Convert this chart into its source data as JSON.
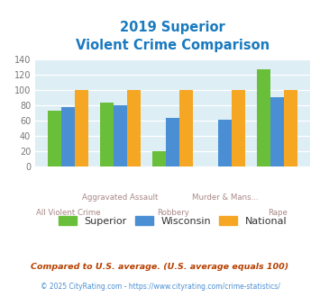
{
  "title_line1": "2019 Superior",
  "title_line2": "Violent Crime Comparison",
  "title_color": "#1a7abf",
  "categories": [
    "All Violent Crime",
    "Aggravated Assault",
    "Robbery",
    "Murder & Mans...",
    "Rape"
  ],
  "superior": [
    73,
    83,
    20,
    0,
    127
  ],
  "wisconsin": [
    77,
    80,
    63,
    61,
    91
  ],
  "national": [
    100,
    100,
    100,
    100,
    100
  ],
  "color_superior": "#6abf3a",
  "color_wisconsin": "#4a8fd4",
  "color_national": "#f5a623",
  "ylim": [
    0,
    140
  ],
  "yticks": [
    0,
    20,
    40,
    60,
    80,
    100,
    120,
    140
  ],
  "legend_labels": [
    "Superior",
    "Wisconsin",
    "National"
  ],
  "footnote1": "Compared to U.S. average. (U.S. average equals 100)",
  "footnote2": "© 2025 CityRating.com - https://www.cityrating.com/crime-statistics/",
  "footnote1_color": "#b84000",
  "footnote2_color": "#4a8fd4",
  "fig_bg_color": "#ffffff",
  "plot_bg_color": "#ddeef5"
}
